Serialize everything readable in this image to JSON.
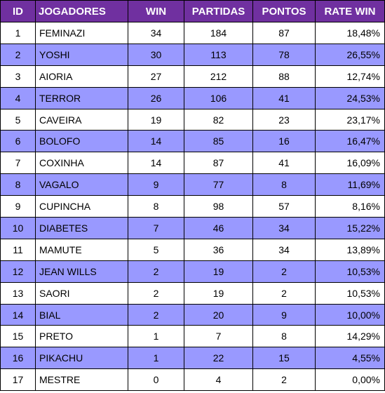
{
  "colors": {
    "header_bg": "#7030a0",
    "header_text": "#ffffff",
    "stripe_bg": "#9999ff",
    "plain_bg": "#ffffff",
    "border": "#000000"
  },
  "table": {
    "headers": [
      "ID",
      "JOGADORES",
      "WIN",
      "PARTIDAS",
      "PONTOS",
      "RATE WIN"
    ],
    "rows": [
      [
        "1",
        "FEMINAZI",
        "34",
        "184",
        "87",
        "18,48%"
      ],
      [
        "2",
        "YOSHI",
        "30",
        "113",
        "78",
        "26,55%"
      ],
      [
        "3",
        "AIORIA",
        "27",
        "212",
        "88",
        "12,74%"
      ],
      [
        "4",
        "TERROR",
        "26",
        "106",
        "41",
        "24,53%"
      ],
      [
        "5",
        "CAVEIRA",
        "19",
        "82",
        "23",
        "23,17%"
      ],
      [
        "6",
        "BOLOFO",
        "14",
        "85",
        "16",
        "16,47%"
      ],
      [
        "7",
        "COXINHA",
        "14",
        "87",
        "41",
        "16,09%"
      ],
      [
        "8",
        "VAGALO",
        "9",
        "77",
        "8",
        "11,69%"
      ],
      [
        "9",
        "CUPINCHA",
        "8",
        "98",
        "57",
        "8,16%"
      ],
      [
        "10",
        "DIABETES",
        "7",
        "46",
        "34",
        "15,22%"
      ],
      [
        "11",
        "MAMUTE",
        "5",
        "36",
        "34",
        "13,89%"
      ],
      [
        "12",
        "JEAN WILLS",
        "2",
        "19",
        "2",
        "10,53%"
      ],
      [
        "13",
        "SAORI",
        "2",
        "19",
        "2",
        "10,53%"
      ],
      [
        "14",
        "BIAL",
        "2",
        "20",
        "9",
        "10,00%"
      ],
      [
        "15",
        "PRETO",
        "1",
        "7",
        "8",
        "14,29%"
      ],
      [
        "16",
        "PIKACHU",
        "1",
        "22",
        "15",
        "4,55%"
      ],
      [
        "17",
        "MESTRE",
        "0",
        "4",
        "2",
        "0,00%"
      ]
    ]
  }
}
